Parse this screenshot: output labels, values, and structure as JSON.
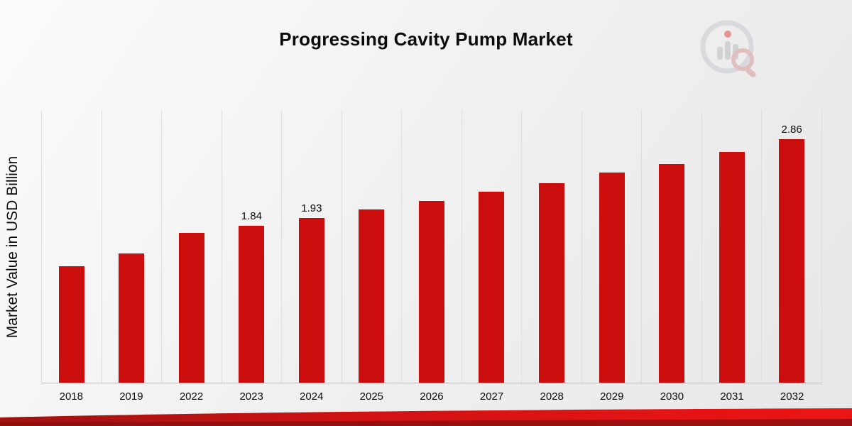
{
  "title": "Progressing Cavity Pump Market",
  "ylabel": "Market Value in USD Billion",
  "accent_color": "#cc0d0d",
  "chart_data": {
    "type": "bar",
    "title": "Progressing Cavity Pump Market",
    "xlabel": "",
    "ylabel": "Market Value in USD Billion",
    "categories": [
      "2018",
      "2019",
      "2022",
      "2023",
      "2024",
      "2025",
      "2026",
      "2027",
      "2028",
      "2029",
      "2030",
      "2031",
      "2032"
    ],
    "values": [
      1.37,
      1.52,
      1.76,
      1.84,
      1.93,
      2.03,
      2.13,
      2.24,
      2.34,
      2.47,
      2.57,
      2.71,
      2.86
    ],
    "data_labels": [
      "",
      "",
      "",
      "1.84",
      "1.93",
      "",
      "",
      "",
      "",
      "",
      "",
      "",
      "2.86"
    ],
    "units": "USD Billion",
    "ylim": [
      0,
      3.2
    ],
    "bar_color": "#cc0d0d",
    "grid": "vertical",
    "legend": "none"
  }
}
